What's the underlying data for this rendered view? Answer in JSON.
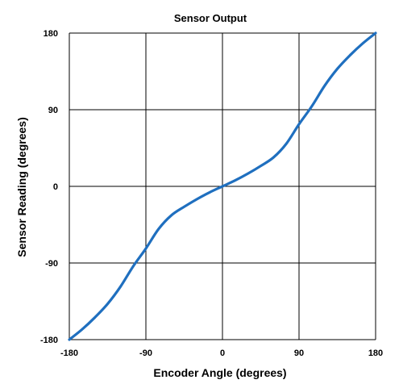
{
  "chart_data": {
    "type": "line",
    "title": "Sensor Output",
    "xlabel": "Encoder Angle (degrees)",
    "ylabel": "Sensor Reading (degrees)",
    "xlim": [
      -180,
      180
    ],
    "ylim": [
      -180,
      180
    ],
    "xticks": [
      -180,
      -90,
      0,
      90,
      180
    ],
    "yticks": [
      -180,
      -90,
      0,
      90,
      180
    ],
    "xtick_labels": [
      "-180",
      "-90",
      "0",
      "90",
      "180"
    ],
    "ytick_labels": [
      "-180",
      "-90",
      "0",
      "90",
      "180"
    ],
    "grid": true,
    "legend": "none",
    "line_color": "#1f6fbf",
    "grid_color": "#000000",
    "series": [
      {
        "x": [
          -180,
          -165,
          -150,
          -135,
          -120,
          -105,
          -90,
          -75,
          -60,
          -45,
          -30,
          -15,
          0,
          15,
          30,
          45,
          60,
          75,
          90,
          105,
          120,
          135,
          150,
          165,
          180
        ],
        "y": [
          -180,
          -168,
          -154,
          -138,
          -118,
          -94,
          -73,
          -50,
          -34,
          -24,
          -15,
          -7,
          0,
          7,
          15,
          24,
          34,
          50,
          73,
          94,
          118,
          138,
          154,
          168,
          180
        ]
      }
    ]
  }
}
